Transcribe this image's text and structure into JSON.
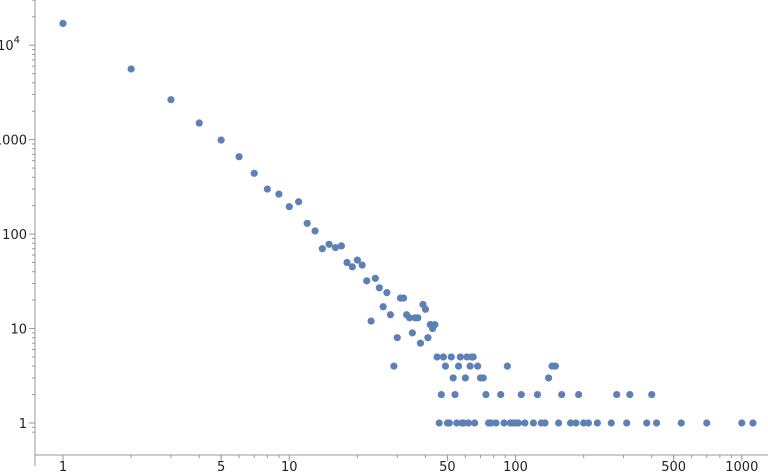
{
  "chart_data": {
    "type": "scatter",
    "title": "",
    "xlabel": "",
    "ylabel": "",
    "xscale": "log",
    "yscale": "log",
    "xlim": [
      0.82,
      1180
    ],
    "ylim": [
      0.75,
      26000
    ],
    "x_ticks": [
      {
        "value": 1,
        "label": "1"
      },
      {
        "value": 5,
        "label": "5"
      },
      {
        "value": 10,
        "label": "10"
      },
      {
        "value": 50,
        "label": "50"
      },
      {
        "value": 100,
        "label": "100"
      },
      {
        "value": 500,
        "label": "500"
      },
      {
        "value": 1000,
        "label": "1000"
      }
    ],
    "y_ticks": [
      {
        "value": 1,
        "base": "1",
        "exp": ""
      },
      {
        "value": 10,
        "base": "10",
        "exp": ""
      },
      {
        "value": 100,
        "base": "100",
        "exp": ""
      },
      {
        "value": 1000,
        "base": "1000",
        "exp": ""
      },
      {
        "value": 10000,
        "base": "10",
        "exp": "4"
      }
    ],
    "series": [
      {
        "name": "points",
        "color": "#5e81b5",
        "points": [
          [
            1,
            17000
          ],
          [
            2,
            5600
          ],
          [
            3,
            2650
          ],
          [
            4,
            1500
          ],
          [
            5,
            990
          ],
          [
            6,
            660
          ],
          [
            7,
            440
          ],
          [
            8,
            300
          ],
          [
            9,
            265
          ],
          [
            10,
            195
          ],
          [
            11,
            220
          ],
          [
            12,
            130
          ],
          [
            13,
            108
          ],
          [
            14,
            70
          ],
          [
            15,
            78
          ],
          [
            16,
            72
          ],
          [
            17,
            75
          ],
          [
            18,
            50
          ],
          [
            19,
            45
          ],
          [
            20,
            53
          ],
          [
            21,
            47
          ],
          [
            22,
            32
          ],
          [
            23,
            12
          ],
          [
            24,
            34
          ],
          [
            25,
            27
          ],
          [
            26,
            17
          ],
          [
            27,
            24
          ],
          [
            28,
            14
          ],
          [
            29,
            4
          ],
          [
            30,
            8
          ],
          [
            31,
            21
          ],
          [
            32,
            21
          ],
          [
            33,
            14
          ],
          [
            34,
            13
          ],
          [
            35,
            9
          ],
          [
            36,
            13
          ],
          [
            37,
            13
          ],
          [
            38,
            7
          ],
          [
            39,
            18
          ],
          [
            40,
            16
          ],
          [
            41,
            8
          ],
          [
            42,
            11
          ],
          [
            43,
            10
          ],
          [
            44,
            11
          ],
          [
            45,
            5
          ],
          [
            46,
            1
          ],
          [
            47,
            2
          ],
          [
            48,
            5
          ],
          [
            49,
            4
          ],
          [
            50,
            1
          ],
          [
            51,
            1
          ],
          [
            52,
            5
          ],
          [
            53,
            3
          ],
          [
            54,
            2
          ],
          [
            55,
            1
          ],
          [
            56,
            4
          ],
          [
            57,
            5
          ],
          [
            58,
            1
          ],
          [
            59,
            1
          ],
          [
            60,
            3
          ],
          [
            61,
            5
          ],
          [
            62,
            1
          ],
          [
            63,
            4
          ],
          [
            64,
            5
          ],
          [
            65,
            5
          ],
          [
            66,
            1
          ],
          [
            68,
            4
          ],
          [
            70,
            3
          ],
          [
            72,
            3
          ],
          [
            74,
            2
          ],
          [
            76,
            1
          ],
          [
            78,
            1
          ],
          [
            82,
            1
          ],
          [
            86,
            2
          ],
          [
            89,
            1
          ],
          [
            92,
            4
          ],
          [
            95,
            1
          ],
          [
            98,
            1
          ],
          [
            100,
            1
          ],
          [
            103,
            1
          ],
          [
            106,
            2
          ],
          [
            110,
            1
          ],
          [
            120,
            1
          ],
          [
            125,
            2
          ],
          [
            130,
            1
          ],
          [
            135,
            1
          ],
          [
            140,
            3
          ],
          [
            145,
            4
          ],
          [
            150,
            4
          ],
          [
            155,
            1
          ],
          [
            160,
            2
          ],
          [
            175,
            1
          ],
          [
            185,
            1
          ],
          [
            190,
            2
          ],
          [
            200,
            1
          ],
          [
            210,
            1
          ],
          [
            230,
            1
          ],
          [
            265,
            1
          ],
          [
            280,
            2
          ],
          [
            310,
            1
          ],
          [
            320,
            2
          ],
          [
            380,
            1
          ],
          [
            400,
            2
          ],
          [
            420,
            1
          ],
          [
            540,
            1
          ],
          [
            700,
            1
          ],
          [
            1000,
            1
          ],
          [
            1120,
            1
          ]
        ]
      }
    ]
  }
}
